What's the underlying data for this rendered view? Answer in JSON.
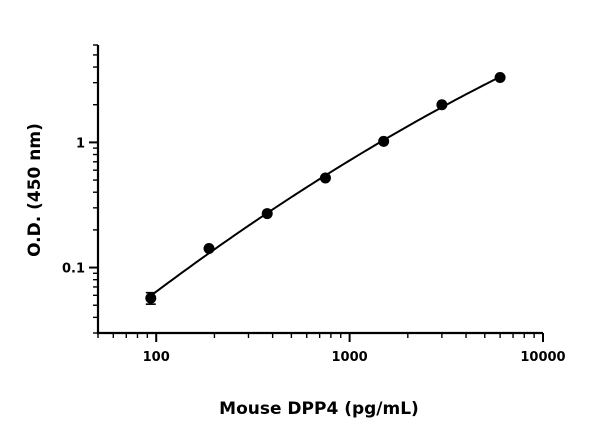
{
  "chart_data": {
    "type": "scatter",
    "title": "",
    "xlabel": "Mouse DPP4 (pg/mL)",
    "ylabel": "O.D. (450 nm)",
    "x_scale": "log",
    "y_scale": "log",
    "xlim": [
      50,
      10000
    ],
    "ylim": [
      0.03,
      6
    ],
    "x_ticks": [
      100,
      1000,
      10000
    ],
    "x_tick_labels": [
      "100",
      "1000",
      "10000"
    ],
    "y_ticks": [
      0.1,
      1
    ],
    "y_tick_labels": [
      "0.1",
      "1"
    ],
    "grid": false,
    "legend": "none",
    "fit_curve": true,
    "points": [
      {
        "x": 93.75,
        "y": 0.057,
        "err": 0.006
      },
      {
        "x": 187.5,
        "y": 0.142,
        "err": 0
      },
      {
        "x": 375,
        "y": 0.27,
        "err": 0
      },
      {
        "x": 750,
        "y": 0.52,
        "err": 0
      },
      {
        "x": 1500,
        "y": 1.02,
        "err": 0
      },
      {
        "x": 3000,
        "y": 2.0,
        "err": 0
      },
      {
        "x": 6000,
        "y": 3.3,
        "err": 0
      }
    ],
    "colors": {
      "points": "#000000",
      "curve": "#000000",
      "axes": "#000000"
    }
  }
}
